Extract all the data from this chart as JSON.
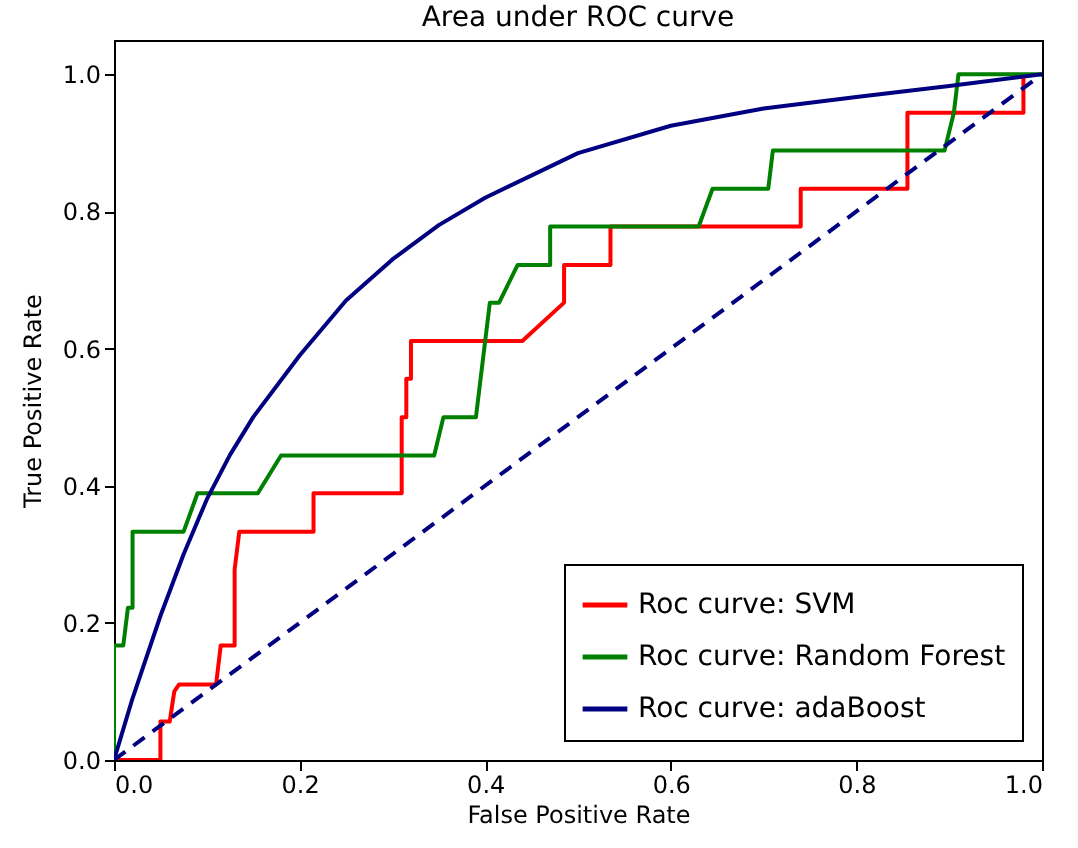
{
  "chart_data": {
    "type": "line",
    "title": "Area under ROC curve",
    "xlabel": "False Positive Rate",
    "ylabel": "True Positive Rate",
    "xlim": [
      0,
      1
    ],
    "ylim": [
      0,
      1.05
    ],
    "xticks": [
      {
        "value": 0,
        "label": "0.0"
      },
      {
        "value": 0.2,
        "label": "0.2"
      },
      {
        "value": 0.4,
        "label": "0.4"
      },
      {
        "value": 0.6,
        "label": "0.6"
      },
      {
        "value": 0.8,
        "label": "0.8"
      },
      {
        "value": 1,
        "label": "1.0"
      }
    ],
    "yticks": [
      {
        "value": 0,
        "label": "0.0"
      },
      {
        "value": 0.2,
        "label": "0.2"
      },
      {
        "value": 0.4,
        "label": "0.4"
      },
      {
        "value": 0.6,
        "label": "0.6"
      },
      {
        "value": 0.8,
        "label": "0.8"
      },
      {
        "value": 1,
        "label": "1.0"
      }
    ],
    "grid": false,
    "legend": "bottom right",
    "line_style": "solid",
    "series": [
      {
        "name": "Roc curve: SVM",
        "color": "#ff0000",
        "x": [
          0,
          0.05,
          0.05,
          0.06,
          0.065,
          0.07,
          0.11,
          0.115,
          0.13,
          0.13,
          0.135,
          0.215,
          0.215,
          0.31,
          0.31,
          0.315,
          0.315,
          0.32,
          0.32,
          0.44,
          0.485,
          0.485,
          0.535,
          0.535,
          0.74,
          0.74,
          0.855,
          0.855,
          0.98,
          0.98
        ],
        "values": [
          0,
          0,
          0.056,
          0.056,
          0.1,
          0.11,
          0.11,
          0.167,
          0.167,
          0.278,
          0.333,
          0.333,
          0.389,
          0.389,
          0.5,
          0.5,
          0.556,
          0.556,
          0.611,
          0.611,
          0.667,
          0.722,
          0.722,
          0.778,
          0.778,
          0.833,
          0.833,
          0.944,
          0.944,
          1
        ]
      },
      {
        "name": "Roc curve: Random Forest",
        "color": "#008000",
        "x": [
          0,
          0,
          0.01,
          0.015,
          0.02,
          0.02,
          0.075,
          0.09,
          0.155,
          0.18,
          0.345,
          0.355,
          0.39,
          0.405,
          0.415,
          0.435,
          0.47,
          0.47,
          0.63,
          0.645,
          0.705,
          0.71,
          0.895,
          0.905,
          0.91,
          1
        ],
        "values": [
          0,
          0.167,
          0.167,
          0.222,
          0.222,
          0.333,
          0.333,
          0.389,
          0.389,
          0.444,
          0.444,
          0.5,
          0.5,
          0.667,
          0.667,
          0.722,
          0.722,
          0.778,
          0.778,
          0.833,
          0.833,
          0.889,
          0.889,
          0.944,
          1,
          1
        ]
      },
      {
        "name": "Roc curve: adaBoost",
        "color": "#000080",
        "x": [
          0,
          0.01,
          0.02,
          0.03,
          0.05,
          0.075,
          0.1,
          0.125,
          0.15,
          0.2,
          0.25,
          0.3,
          0.35,
          0.4,
          0.5,
          0.6,
          0.7,
          0.8,
          0.9,
          1
        ],
        "values": [
          0,
          0.045,
          0.09,
          0.13,
          0.21,
          0.3,
          0.38,
          0.445,
          0.5,
          0.59,
          0.67,
          0.73,
          0.78,
          0.82,
          0.885,
          0.925,
          0.95,
          0.967,
          0.983,
          1
        ]
      },
      {
        "color": "#000080",
        "line_style": "dashed",
        "x": [
          0,
          1
        ],
        "values": [
          0,
          1
        ]
      }
    ]
  }
}
